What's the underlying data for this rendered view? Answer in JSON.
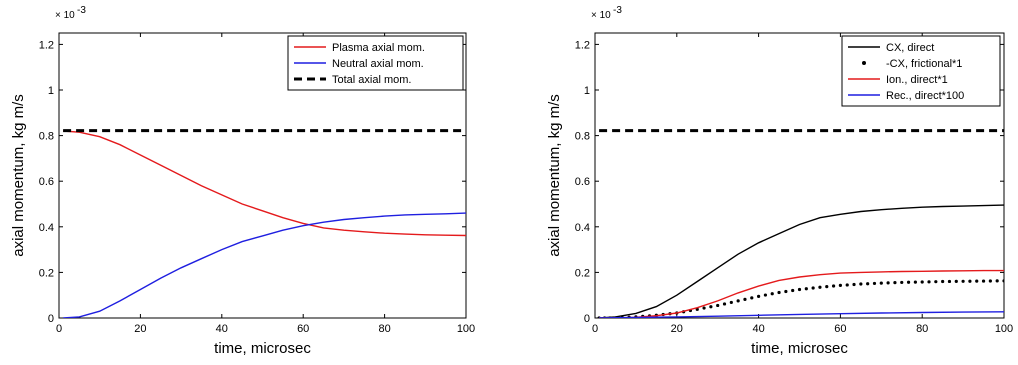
{
  "chart_data": [
    {
      "type": "line",
      "xlabel": "time, microsec",
      "ylabel": "axial momentum, kg m/s",
      "y_multiplier": "× 10",
      "y_multiplier_exp": "-3",
      "xlim": [
        0,
        100
      ],
      "ylim": [
        0,
        1.25
      ],
      "xticks": [
        0,
        20,
        40,
        60,
        80,
        100
      ],
      "yticks": [
        0,
        0.2,
        0.4,
        0.6,
        0.8,
        1.0,
        1.2
      ],
      "ytick_labels": [
        "0",
        "0.2",
        "0.4",
        "0.6",
        "0.8",
        "1",
        "1.2"
      ],
      "legend_position": "top-right",
      "series": [
        {
          "name": "Plasma axial mom.",
          "color": "#e41a1c",
          "style": "solid",
          "x": [
            1,
            5,
            10,
            15,
            20,
            25,
            30,
            35,
            40,
            45,
            50,
            55,
            60,
            65,
            70,
            75,
            80,
            85,
            90,
            95,
            100
          ],
          "y": [
            0.82,
            0.815,
            0.795,
            0.76,
            0.715,
            0.67,
            0.625,
            0.58,
            0.54,
            0.5,
            0.47,
            0.44,
            0.415,
            0.395,
            0.385,
            0.378,
            0.372,
            0.368,
            0.365,
            0.363,
            0.362
          ]
        },
        {
          "name": "Neutral axial mom.",
          "color": "#1f1fe0",
          "style": "solid",
          "x": [
            1,
            5,
            10,
            15,
            20,
            25,
            30,
            35,
            40,
            45,
            50,
            55,
            60,
            65,
            70,
            75,
            80,
            85,
            90,
            95,
            100
          ],
          "y": [
            0.0,
            0.005,
            0.03,
            0.075,
            0.125,
            0.175,
            0.22,
            0.26,
            0.3,
            0.335,
            0.36,
            0.385,
            0.405,
            0.42,
            0.432,
            0.44,
            0.447,
            0.452,
            0.455,
            0.457,
            0.46
          ]
        },
        {
          "name": "Total axial mom.",
          "color": "#000000",
          "style": "dashed",
          "x": [
            1,
            100
          ],
          "y": [
            0.822,
            0.822
          ]
        }
      ]
    },
    {
      "type": "line",
      "xlabel": "time, microsec",
      "ylabel": "axial momentum, kg m/s",
      "y_multiplier": "× 10",
      "y_multiplier_exp": "-3",
      "xlim": [
        0,
        100
      ],
      "ylim": [
        0,
        1.25
      ],
      "xticks": [
        0,
        20,
        40,
        60,
        80,
        100
      ],
      "yticks": [
        0,
        0.2,
        0.4,
        0.6,
        0.8,
        1.0,
        1.2
      ],
      "ytick_labels": [
        "0",
        "0.2",
        "0.4",
        "0.6",
        "0.8",
        "1",
        "1.2"
      ],
      "legend_position": "top-right",
      "series": [
        {
          "name": "",
          "color": "#000000",
          "style": "dashed",
          "x": [
            1,
            100
          ],
          "y": [
            0.822,
            0.822
          ]
        },
        {
          "name": "CX, direct",
          "color": "#000000",
          "style": "solid",
          "x": [
            1,
            5,
            10,
            15,
            20,
            25,
            30,
            35,
            40,
            45,
            50,
            55,
            60,
            65,
            70,
            75,
            80,
            85,
            90,
            95,
            100
          ],
          "y": [
            0.0,
            0.005,
            0.02,
            0.05,
            0.1,
            0.16,
            0.22,
            0.28,
            0.33,
            0.37,
            0.41,
            0.44,
            0.455,
            0.467,
            0.475,
            0.481,
            0.486,
            0.489,
            0.491,
            0.493,
            0.495
          ]
        },
        {
          "name": "-CX, frictional*1",
          "color": "#000000",
          "style": "dots",
          "x": [
            1,
            5,
            10,
            15,
            20,
            25,
            30,
            35,
            40,
            45,
            50,
            55,
            60,
            65,
            70,
            75,
            80,
            85,
            90,
            95,
            100
          ],
          "y": [
            0.0,
            0.0,
            0.005,
            0.012,
            0.022,
            0.038,
            0.055,
            0.075,
            0.095,
            0.112,
            0.125,
            0.135,
            0.143,
            0.149,
            0.153,
            0.156,
            0.158,
            0.16,
            0.161,
            0.162,
            0.163
          ]
        },
        {
          "name": "Ion., direct*1",
          "color": "#e41a1c",
          "style": "solid",
          "x": [
            1,
            5,
            10,
            15,
            20,
            25,
            30,
            35,
            40,
            45,
            50,
            55,
            60,
            65,
            70,
            75,
            80,
            85,
            90,
            95,
            100
          ],
          "y": [
            0.0,
            0.0,
            0.003,
            0.01,
            0.022,
            0.045,
            0.075,
            0.11,
            0.14,
            0.165,
            0.18,
            0.19,
            0.197,
            0.2,
            0.202,
            0.204,
            0.205,
            0.206,
            0.207,
            0.208,
            0.208
          ]
        },
        {
          "name": "Rec., direct*100",
          "color": "#1f1fe0",
          "style": "solid",
          "x": [
            1,
            10,
            20,
            30,
            40,
            50,
            60,
            70,
            80,
            90,
            100
          ],
          "y": [
            0.0,
            0.002,
            0.005,
            0.008,
            0.012,
            0.016,
            0.019,
            0.022,
            0.024,
            0.026,
            0.027
          ]
        }
      ]
    }
  ]
}
